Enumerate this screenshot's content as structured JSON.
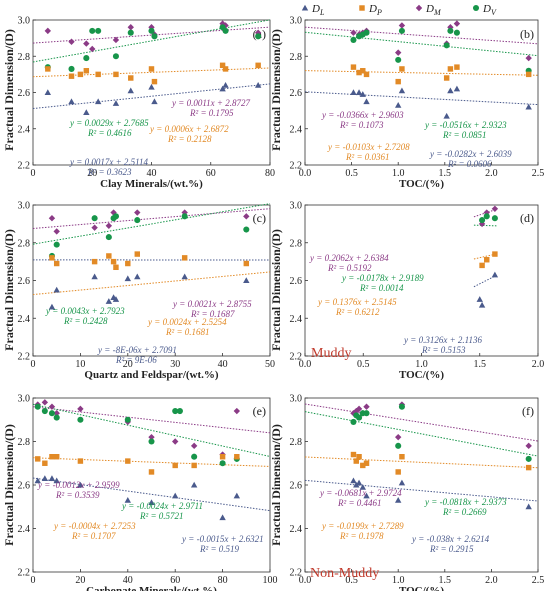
{
  "legend": [
    {
      "key": "DL",
      "text": "D",
      "sub": "L",
      "color": "#4a5a8c",
      "marker": "triangle"
    },
    {
      "key": "DP",
      "text": "D",
      "sub": "P",
      "color": "#e28a26",
      "marker": "square"
    },
    {
      "key": "DM",
      "text": "D",
      "sub": "M",
      "color": "#8b3b86",
      "marker": "diamond"
    },
    {
      "key": "DV",
      "text": "D",
      "sub": "V",
      "color": "#17954a",
      "marker": "circle"
    }
  ],
  "y_axis_label": "Fractual Dimension/(D)",
  "chart_data": [
    {
      "id": "a",
      "type": "scatter",
      "panel_label": "(a)",
      "xlabel": "Clay Minerals/(wt.%)",
      "xlim": [
        0,
        80
      ],
      "ylim": [
        2.2,
        3.0
      ],
      "xticks": [
        0,
        20,
        40,
        60,
        80
      ],
      "yticks": [
        2.2,
        2.4,
        2.6,
        2.8,
        3.0
      ],
      "series": [
        {
          "key": "DM",
          "x": [
            5,
            13,
            18,
            20,
            28,
            33,
            40,
            41,
            64,
            65,
            76
          ],
          "y": [
            2.94,
            2.88,
            2.87,
            2.84,
            2.89,
            2.96,
            2.96,
            2.92,
            2.98,
            2.97,
            2.93
          ],
          "fit": [
            2.8727,
            0.0011
          ]
        },
        {
          "key": "DV",
          "x": [
            5,
            13,
            18,
            20,
            22,
            28,
            33,
            40,
            41,
            64,
            65,
            76
          ],
          "y": [
            2.74,
            2.73,
            2.79,
            2.94,
            2.94,
            2.8,
            2.93,
            2.94,
            2.91,
            2.96,
            2.94,
            2.91
          ],
          "fit": [
            2.7685,
            0.0029
          ]
        },
        {
          "key": "DP",
          "x": [
            5,
            13,
            16,
            18,
            22,
            28,
            33,
            40,
            41,
            64,
            65,
            76
          ],
          "y": [
            2.73,
            2.69,
            2.7,
            2.72,
            2.7,
            2.7,
            2.68,
            2.73,
            2.66,
            2.75,
            2.73,
            2.75
          ],
          "fit": [
            2.6872,
            0.0006
          ]
        },
        {
          "key": "DL",
          "x": [
            5,
            13,
            18,
            22,
            28,
            33,
            40,
            41,
            64,
            65,
            76
          ],
          "y": [
            2.6,
            2.55,
            2.49,
            2.55,
            2.54,
            2.61,
            2.63,
            2.55,
            2.62,
            2.64,
            2.64
          ],
          "fit": [
            2.5114,
            0.0017
          ]
        }
      ],
      "equations": [
        {
          "key": "DM",
          "eq": "y = 0.0011x + 2.8727",
          "r2": "R² = 0.1795"
        },
        {
          "key": "DV",
          "eq": "y = 0.0029x + 2.7685",
          "r2": "R² = 0.4616"
        },
        {
          "key": "DP",
          "eq": "y = 0.0006x + 2.6872",
          "r2": "R² = 0.2128"
        },
        {
          "key": "DL",
          "eq": "y = 0.0017x + 2.5114",
          "r2": "R² = 0.3623"
        }
      ]
    },
    {
      "id": "b",
      "type": "scatter",
      "panel_label": "(b)",
      "xlabel": "TOC/(%)",
      "xlim": [
        0,
        2.5
      ],
      "ylim": [
        2.2,
        3.0
      ],
      "xticks": [
        0,
        0.5,
        1.0,
        1.5,
        2.0,
        2.5
      ],
      "yticks": [
        2.2,
        2.4,
        2.6,
        2.8,
        3.0
      ],
      "series": [
        {
          "key": "DM",
          "x": [
            0.52,
            0.58,
            0.62,
            0.66,
            1.0,
            1.04,
            1.52,
            1.56,
            1.63,
            2.4
          ],
          "y": [
            2.93,
            2.92,
            2.93,
            2.94,
            2.82,
            2.97,
            2.87,
            2.96,
            2.98,
            2.79
          ],
          "fit": [
            2.9603,
            -0.0366
          ]
        },
        {
          "key": "DV",
          "x": [
            0.52,
            0.58,
            0.62,
            0.66,
            1.0,
            1.04,
            1.52,
            1.56,
            1.63,
            2.4
          ],
          "y": [
            2.89,
            2.91,
            2.92,
            2.93,
            2.78,
            2.94,
            2.86,
            2.94,
            2.93,
            2.72
          ],
          "fit": [
            2.9323,
            -0.0516
          ]
        },
        {
          "key": "DP",
          "x": [
            0.52,
            0.58,
            0.62,
            0.66,
            1.0,
            1.04,
            1.52,
            1.56,
            1.63,
            2.4
          ],
          "y": [
            2.74,
            2.71,
            2.72,
            2.7,
            2.66,
            2.73,
            2.68,
            2.73,
            2.74,
            2.7
          ],
          "fit": [
            2.7208,
            -0.0103
          ]
        },
        {
          "key": "DL",
          "x": [
            0.52,
            0.58,
            0.62,
            0.66,
            1.0,
            1.04,
            1.52,
            1.56,
            1.63,
            2.4
          ],
          "y": [
            2.6,
            2.6,
            2.59,
            2.55,
            2.53,
            2.61,
            2.47,
            2.61,
            2.62,
            2.52
          ],
          "fit": [
            2.6039,
            -0.0282
          ]
        }
      ],
      "equations": [
        {
          "key": "DM",
          "eq": "y = -0.0366x + 2.9603",
          "r2": "R² = 0.1073"
        },
        {
          "key": "DV",
          "eq": "y = -0.0516x + 2.9323",
          "r2": "R² = 0.0851"
        },
        {
          "key": "DP",
          "eq": "y = -0.0103x + 2.7208",
          "r2": "R² = 0.0361"
        },
        {
          "key": "DL",
          "eq": "y = -0.0282x + 2.6039",
          "r2": "R² = 0.0606"
        }
      ]
    },
    {
      "id": "c",
      "type": "scatter",
      "panel_label": "(c)",
      "xlabel": "Quartz and Feldspar/(wt.%)",
      "xlim": [
        0,
        50
      ],
      "ylim": [
        2.2,
        3.0
      ],
      "xticks": [
        0,
        10,
        20,
        30,
        40,
        50
      ],
      "yticks": [
        2.2,
        2.4,
        2.6,
        2.8,
        3.0
      ],
      "series": [
        {
          "key": "DM",
          "x": [
            4,
            5,
            13,
            16,
            17,
            17.5,
            22,
            32,
            45
          ],
          "y": [
            2.93,
            2.86,
            2.88,
            2.89,
            2.96,
            2.94,
            2.96,
            2.96,
            2.94
          ],
          "fit": [
            2.8755,
            0.0021
          ]
        },
        {
          "key": "DV",
          "x": [
            4,
            5,
            13,
            16,
            17,
            17.5,
            22,
            32,
            45
          ],
          "y": [
            2.73,
            2.79,
            2.93,
            2.83,
            2.93,
            2.94,
            2.92,
            2.94,
            2.87
          ],
          "fit": [
            2.7923,
            0.0043
          ]
        },
        {
          "key": "DP",
          "x": [
            4,
            5,
            13,
            16,
            17,
            17.5,
            20,
            22,
            32,
            45
          ],
          "y": [
            2.72,
            2.69,
            2.7,
            2.73,
            2.7,
            2.67,
            2.69,
            2.74,
            2.72,
            2.69
          ],
          "fit": [
            2.5254,
            0.0024
          ]
        },
        {
          "key": "DL",
          "x": [
            4,
            5,
            13,
            16,
            17,
            17.5,
            20,
            22,
            32,
            45
          ],
          "y": [
            2.46,
            2.55,
            2.62,
            2.49,
            2.51,
            2.5,
            2.61,
            2.62,
            2.62,
            2.6
          ],
          "fit": [
            2.7091,
            -8e-06
          ]
        }
      ],
      "equations": [
        {
          "key": "DM",
          "eq": "y = 0.0021x + 2.8755",
          "r2": "R² = 0.1687"
        },
        {
          "key": "DV",
          "eq": "y = 0.0043x + 2.7923",
          "r2": "R² = 0.2428"
        },
        {
          "key": "DP",
          "eq": "y = 0.0024x + 2.5254",
          "r2": "R² = 0.1681"
        },
        {
          "key": "DL",
          "eq": "y = -8E-06x + 2.7091",
          "r2": "R² = 9E-06"
        }
      ]
    },
    {
      "id": "d",
      "type": "scatter",
      "panel_label": "(d)",
      "annotation": "Muddy",
      "xlabel": "TOC/(%)",
      "xlim": [
        0,
        2
      ],
      "ylim": [
        2.2,
        3.0
      ],
      "xticks": [
        0,
        0.5,
        1.0,
        1.5,
        2.0
      ],
      "yticks": [
        2.2,
        2.4,
        2.6,
        2.8,
        3.0
      ],
      "series": [
        {
          "key": "DM",
          "x": [
            1.52,
            1.56,
            1.63
          ],
          "y": [
            2.9,
            2.96,
            2.98
          ],
          "fit": [
            2.6384,
            0.2062
          ],
          "xr": [
            1.45,
            1.65
          ]
        },
        {
          "key": "DV",
          "x": [
            1.52,
            1.56,
            1.63
          ],
          "y": [
            2.92,
            2.94,
            2.93
          ],
          "fit": [
            2.9189,
            -0.0178
          ],
          "xr": [
            1.45,
            1.65
          ]
        },
        {
          "key": "DP",
          "x": [
            1.52,
            1.56,
            1.63
          ],
          "y": [
            2.68,
            2.71,
            2.74
          ],
          "fit": [
            2.5145,
            0.1376
          ],
          "xr": [
            1.45,
            1.65
          ]
        },
        {
          "key": "DL",
          "x": [
            1.5,
            1.52,
            1.63
          ],
          "y": [
            2.5,
            2.47,
            2.63
          ],
          "fit": [
            2.1136,
            0.3126
          ],
          "xr": [
            1.45,
            1.65
          ]
        }
      ],
      "equations": [
        {
          "key": "DM",
          "eq": "y = 0.2062x + 2.6384",
          "r2": "R² = 0.5192"
        },
        {
          "key": "DV",
          "eq": "y = -0.0178x + 2.9189",
          "r2": "R² = 0.0014"
        },
        {
          "key": "DP",
          "eq": "y = 0.1376x + 2.5145",
          "r2": "R² = 0.6212"
        },
        {
          "key": "DL",
          "eq": "y = 0.3126x + 2.1136",
          "r2": "R² = 0.5153"
        }
      ]
    },
    {
      "id": "e",
      "type": "scatter",
      "panel_label": "(e)",
      "xlabel": "Carbonate Minerals/(wt.%)",
      "xlim": [
        0,
        100
      ],
      "ylim": [
        2.2,
        3.0
      ],
      "xticks": [
        0,
        20,
        40,
        60,
        80,
        100
      ],
      "yticks": [
        2.2,
        2.4,
        2.6,
        2.8,
        3.0
      ],
      "series": [
        {
          "key": "DM",
          "x": [
            2,
            5,
            8,
            10,
            20,
            40,
            50,
            60,
            68,
            80,
            86
          ],
          "y": [
            2.97,
            2.98,
            2.96,
            2.93,
            2.95,
            2.89,
            2.82,
            2.8,
            2.78,
            2.74,
            2.94
          ],
          "fit": [
            2.9599,
            -0.0012
          ]
        },
        {
          "key": "DV",
          "x": [
            2,
            5,
            8,
            10,
            20,
            40,
            50,
            60,
            62,
            68,
            80,
            86
          ],
          "y": [
            2.96,
            2.94,
            2.93,
            2.91,
            2.9,
            2.9,
            2.8,
            2.94,
            2.94,
            2.73,
            2.7,
            2.72
          ],
          "fit": [
            2.9711,
            -0.0024
          ]
        },
        {
          "key": "DP",
          "x": [
            2,
            5,
            8,
            10,
            20,
            40,
            50,
            60,
            68,
            80,
            86
          ],
          "y": [
            2.72,
            2.7,
            2.73,
            2.73,
            2.71,
            2.71,
            2.66,
            2.69,
            2.69,
            2.73,
            2.73
          ],
          "fit": [
            2.7253,
            -0.0004
          ]
        },
        {
          "key": "DL",
          "x": [
            2,
            5,
            8,
            10,
            20,
            40,
            50,
            60,
            68,
            80,
            86
          ],
          "y": [
            2.62,
            2.63,
            2.63,
            2.62,
            2.6,
            2.53,
            2.52,
            2.55,
            2.6,
            2.45,
            2.55
          ],
          "fit": [
            2.6321,
            -0.0015
          ]
        }
      ],
      "equations": [
        {
          "key": "DM",
          "eq": "y = -0.0012x + 2.9599",
          "r2": "R² = 0.3539"
        },
        {
          "key": "DV",
          "eq": "y = -0.0024x + 2.9711",
          "r2": "R² = 0.5721"
        },
        {
          "key": "DP",
          "eq": "y = -0.0004x + 2.7253",
          "r2": "R² = 0.1707"
        },
        {
          "key": "DL",
          "eq": "y = -0.0015x + 2.6321",
          "r2": "R² = 0.519"
        }
      ]
    },
    {
      "id": "f",
      "type": "scatter",
      "panel_label": "(f)",
      "annotation": "Non-Muddy",
      "xlabel": "TOC/(%)",
      "xlim": [
        0,
        2.5
      ],
      "ylim": [
        2.2,
        3.0
      ],
      "xticks": [
        0,
        0.5,
        1.0,
        1.5,
        2.0,
        2.5
      ],
      "yticks": [
        2.2,
        2.4,
        2.6,
        2.8,
        3.0
      ],
      "series": [
        {
          "key": "DM",
          "x": [
            0.52,
            0.55,
            0.58,
            0.62,
            0.66,
            1.0,
            1.04,
            2.4
          ],
          "y": [
            2.93,
            2.94,
            2.95,
            2.93,
            2.96,
            2.82,
            2.97,
            2.78
          ],
          "fit": [
            2.9724,
            -0.0681
          ]
        },
        {
          "key": "DV",
          "x": [
            0.52,
            0.55,
            0.58,
            0.62,
            0.66,
            1.0,
            1.04,
            2.4
          ],
          "y": [
            2.89,
            2.92,
            2.91,
            2.93,
            2.93,
            2.78,
            2.96,
            2.72
          ],
          "fit": [
            2.9373,
            -0.0818
          ]
        },
        {
          "key": "DP",
          "x": [
            0.52,
            0.55,
            0.58,
            0.62,
            0.66,
            1.0,
            1.04,
            2.4
          ],
          "y": [
            2.74,
            2.71,
            2.73,
            2.69,
            2.7,
            2.66,
            2.73,
            2.68
          ],
          "fit": [
            2.7289,
            -0.0199
          ]
        },
        {
          "key": "DL",
          "x": [
            0.52,
            0.55,
            0.58,
            0.62,
            0.66,
            1.0,
            1.04,
            2.4
          ],
          "y": [
            2.62,
            2.6,
            2.61,
            2.59,
            2.55,
            2.53,
            2.61,
            2.5
          ],
          "fit": [
            2.6214,
            -0.038
          ]
        }
      ],
      "equations": [
        {
          "key": "DM",
          "eq": "y = -0.0681x + 2.9724",
          "r2": "R² = 0.4461"
        },
        {
          "key": "DV",
          "eq": "y = -0.0818x + 2.9373",
          "r2": "R² = 0.2669"
        },
        {
          "key": "DP",
          "eq": "y = -0.0199x + 2.7289",
          "r2": "R² = 0.1978"
        },
        {
          "key": "DL",
          "eq": "y = -0.038x + 2.6214",
          "r2": "R² = 0.2915"
        }
      ]
    }
  ]
}
